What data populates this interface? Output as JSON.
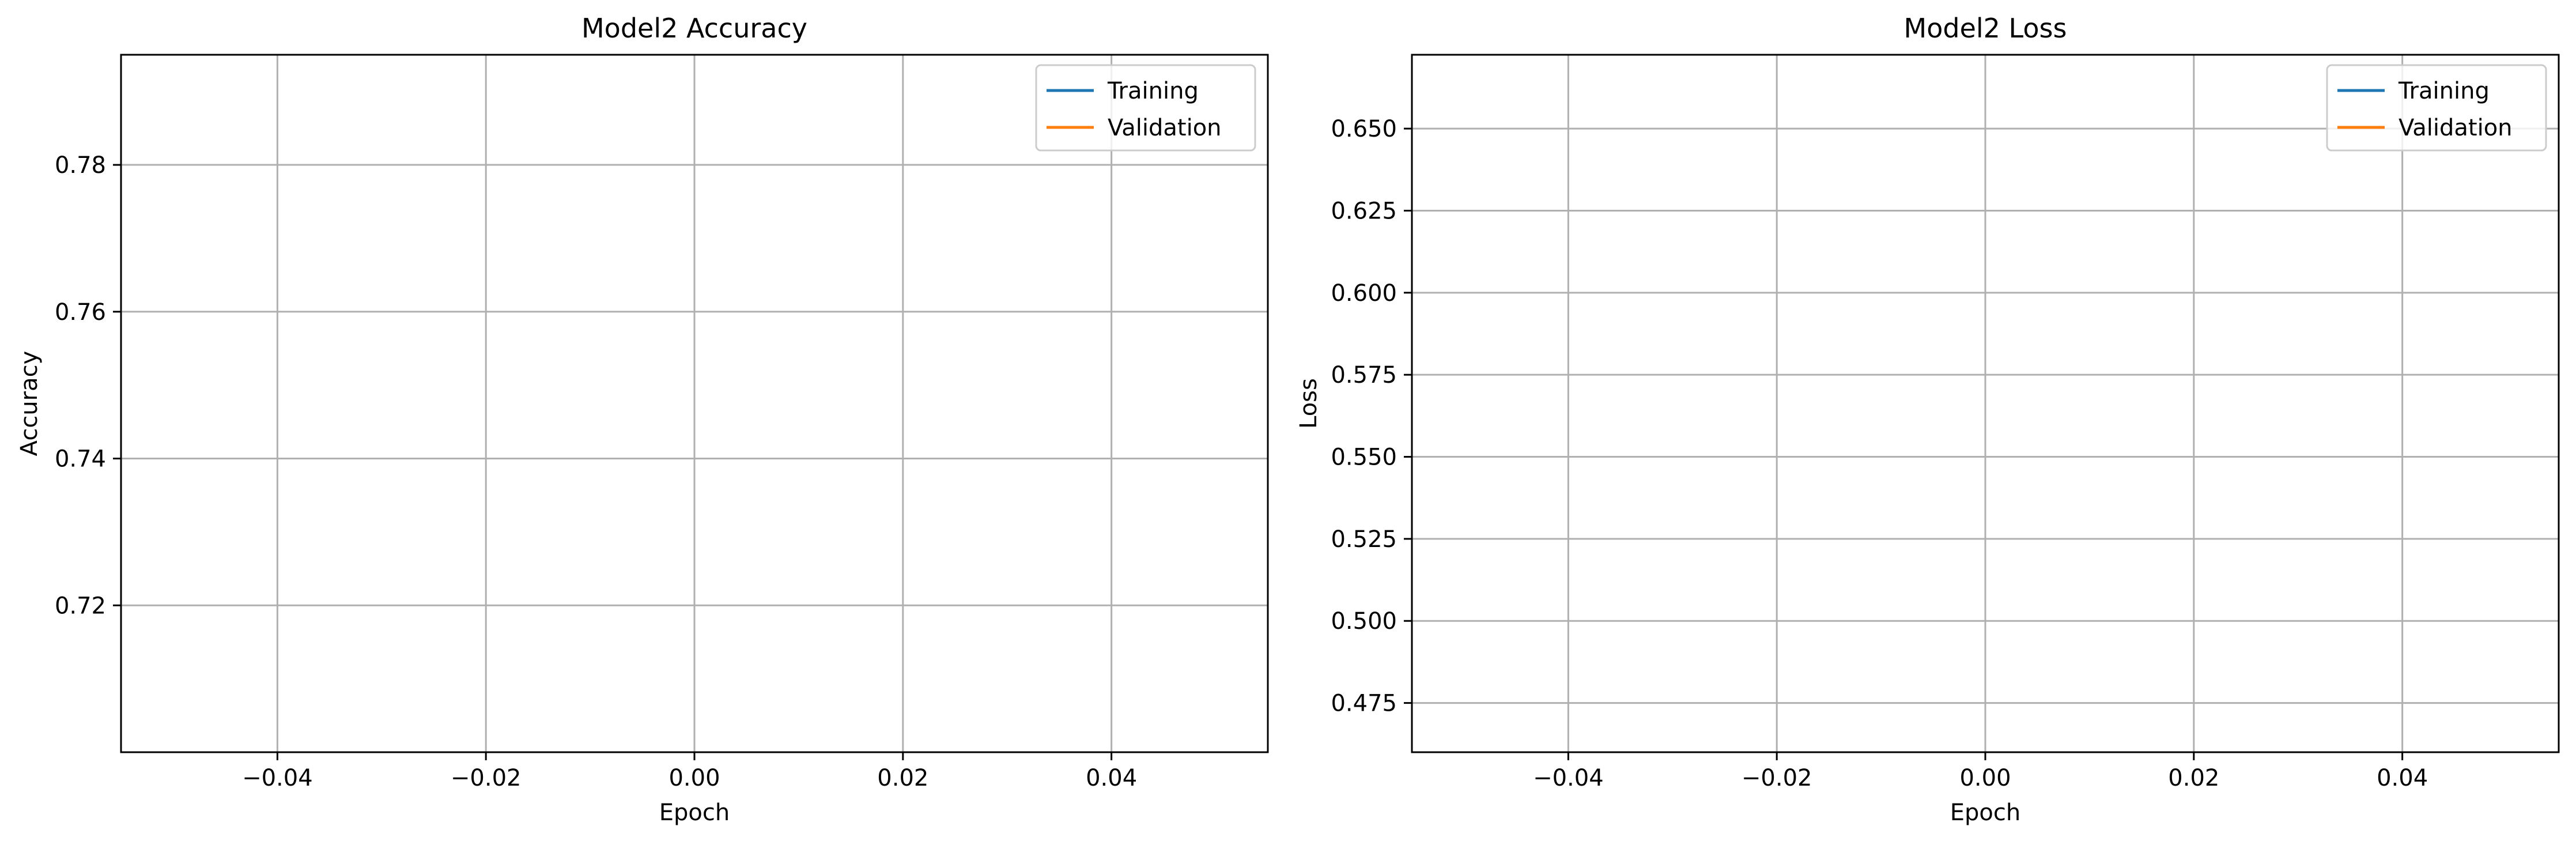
{
  "chart_data": [
    {
      "type": "line",
      "title": "Model2 Accuracy",
      "xlabel": "Epoch",
      "ylabel": "Accuracy",
      "xlim": [
        -0.055,
        0.055
      ],
      "ylim": [
        0.7,
        0.795
      ],
      "xticks": [
        -0.04,
        -0.02,
        0.0,
        0.02,
        0.04
      ],
      "xtick_labels": [
        "−0.04",
        "−0.02",
        "0.00",
        "0.02",
        "0.04"
      ],
      "yticks": [
        0.72,
        0.74,
        0.76,
        0.78
      ],
      "ytick_labels": [
        "0.72",
        "0.74",
        "0.76",
        "0.78"
      ],
      "grid": true,
      "legend_position": "top-right",
      "series": [
        {
          "name": "Training",
          "color": "#1f77b4",
          "x": [],
          "y": []
        },
        {
          "name": "Validation",
          "color": "#ff7f0e",
          "x": [],
          "y": []
        }
      ]
    },
    {
      "type": "line",
      "title": "Model2 Loss",
      "xlabel": "Epoch",
      "ylabel": "Loss",
      "xlim": [
        -0.055,
        0.055
      ],
      "ylim": [
        0.46,
        0.6725
      ],
      "xticks": [
        -0.04,
        -0.02,
        0.0,
        0.02,
        0.04
      ],
      "xtick_labels": [
        "−0.04",
        "−0.02",
        "0.00",
        "0.02",
        "0.04"
      ],
      "yticks": [
        0.475,
        0.5,
        0.525,
        0.55,
        0.575,
        0.6,
        0.625,
        0.65
      ],
      "ytick_labels": [
        "0.475",
        "0.500",
        "0.525",
        "0.550",
        "0.575",
        "0.600",
        "0.625",
        "0.650"
      ],
      "grid": true,
      "legend_position": "top-right",
      "series": [
        {
          "name": "Training",
          "color": "#1f77b4",
          "x": [],
          "y": []
        },
        {
          "name": "Validation",
          "color": "#ff7f0e",
          "x": [],
          "y": []
        }
      ]
    }
  ]
}
